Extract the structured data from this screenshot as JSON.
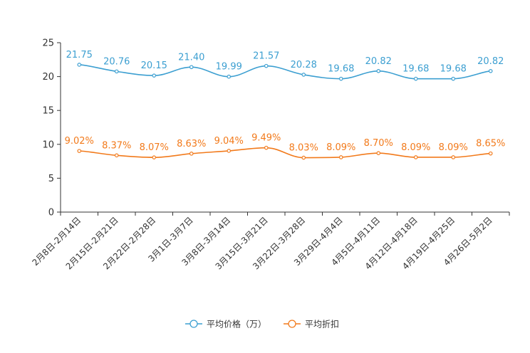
{
  "chart_data": {
    "type": "line",
    "categories": [
      "2月8日-2月14日",
      "2月15日-2月21日",
      "2月22日-2月28日",
      "3月1日-3月7日",
      "3月8日-3月14日",
      "3月15日-3月21日",
      "3月22日-3月28日",
      "3月29日-4月4日",
      "4月5日-4月11日",
      "4月12日-4月18日",
      "4月19日-4月25日",
      "4月26日-5月2日"
    ],
    "series": [
      {
        "name": "平均价格（万）",
        "color": "#3c9fd1",
        "values": [
          21.75,
          20.76,
          20.15,
          21.4,
          19.99,
          21.57,
          20.28,
          19.68,
          20.82,
          19.68,
          19.68,
          20.82
        ],
        "labels": [
          "21.75",
          "20.76",
          "20.15",
          "21.40",
          "19.99",
          "21.57",
          "20.28",
          "19.68",
          "20.82",
          "19.68",
          "19.68",
          "20.82"
        ]
      },
      {
        "name": "平均折扣",
        "color": "#f27a1b",
        "values": [
          9.02,
          8.37,
          8.07,
          8.63,
          9.04,
          9.49,
          8.03,
          8.09,
          8.7,
          8.09,
          8.09,
          8.65
        ],
        "labels": [
          "9.02%",
          "8.37%",
          "8.07%",
          "8.63%",
          "9.04%",
          "9.49%",
          "8.03%",
          "8.09%",
          "8.70%",
          "8.09%",
          "8.09%",
          "8.65%"
        ]
      }
    ],
    "yticks": [
      "0",
      "5",
      "10",
      "15",
      "20",
      "25"
    ],
    "ylim": [
      0,
      25
    ],
    "legend_position": "bottom-center"
  }
}
